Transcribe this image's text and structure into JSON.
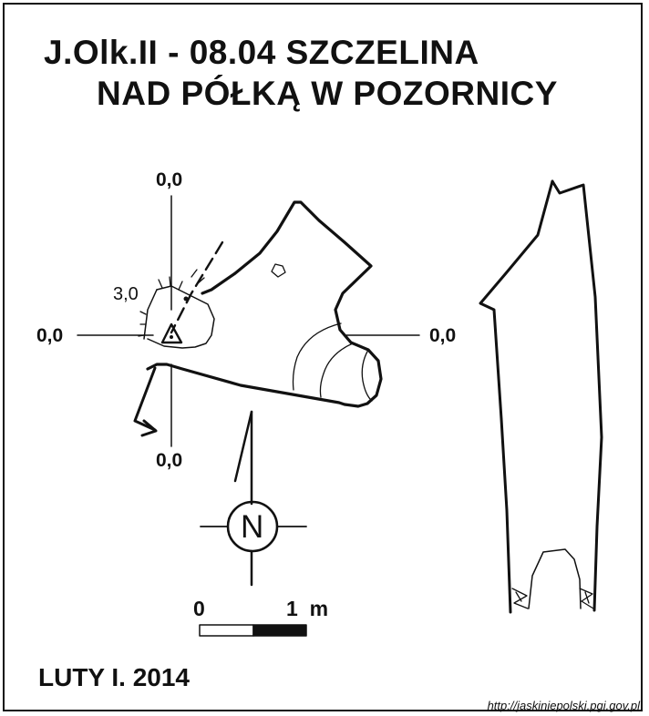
{
  "title": {
    "line1": "J.Olk.II - 08.04  SZCZELINA",
    "line2": "NAD PÓŁKĄ W POZORNICY"
  },
  "plan_view": {
    "datum_top": "0,0",
    "datum_left": "0,0",
    "datum_right": "0,0",
    "datum_bottom": "0,0",
    "height_mark": "3,0"
  },
  "north_arrow": {
    "letter": "N"
  },
  "scale_bar": {
    "start_label": "0",
    "end_label": "1  m"
  },
  "footer": {
    "author_date": "LUTY I. 2014",
    "source": "http://jaskiniepolski.pgi.gov.pl"
  }
}
